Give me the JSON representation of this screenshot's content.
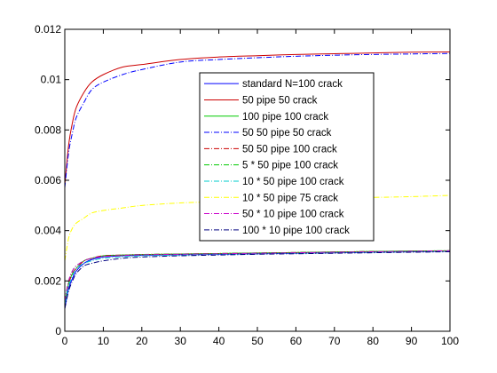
{
  "chart_data": {
    "type": "line",
    "title": "",
    "xlabel": "",
    "ylabel": "",
    "xlim": [
      0,
      100
    ],
    "ylim": [
      0,
      0.012
    ],
    "xticks": [
      0,
      10,
      20,
      30,
      40,
      50,
      60,
      70,
      80,
      90,
      100
    ],
    "xtick_labels": [
      "0",
      "10",
      "20",
      "30",
      "40",
      "50",
      "60",
      "70",
      "80",
      "90",
      "100"
    ],
    "yticks": [
      0,
      0.002,
      0.004,
      0.006,
      0.008,
      0.01,
      0.012
    ],
    "ytick_labels": [
      "0",
      "0.002",
      "0.004",
      "0.006",
      "0.008",
      "0.01",
      "0.012"
    ],
    "grid": false,
    "legend_position": "center",
    "x": [
      0,
      1,
      2,
      3,
      5,
      7,
      10,
      15,
      20,
      30,
      40,
      50,
      60,
      70,
      80,
      90,
      100
    ],
    "series": [
      {
        "name": "standard N=100 crack",
        "color": "#0000ff",
        "dash": "solid",
        "values": [
          0.0009,
          0.0017,
          0.0021,
          0.0024,
          0.0027,
          0.00285,
          0.00295,
          0.003,
          0.00302,
          0.00304,
          0.00306,
          0.00308,
          0.0031,
          0.00312,
          0.00314,
          0.00316,
          0.00318
        ]
      },
      {
        "name": "50 pipe 50 crack",
        "color": "#cc0000",
        "dash": "solid",
        "values": [
          0.0058,
          0.0074,
          0.0083,
          0.0089,
          0.0095,
          0.0099,
          0.0102,
          0.0105,
          0.0106,
          0.0108,
          0.0109,
          0.01095,
          0.011,
          0.01103,
          0.01106,
          0.01109,
          0.0111
        ]
      },
      {
        "name": "100 pipe 100 crack",
        "color": "#00cc00",
        "dash": "solid",
        "values": [
          0.0011,
          0.0019,
          0.0023,
          0.0025,
          0.0028,
          0.0029,
          0.003,
          0.00303,
          0.00305,
          0.00307,
          0.00309,
          0.00311,
          0.00313,
          0.00315,
          0.00317,
          0.00319,
          0.0032
        ]
      },
      {
        "name": "50 50 pipe 50 crack",
        "color": "#0000ff",
        "dash": "dashdot",
        "values": [
          0.0057,
          0.0071,
          0.0079,
          0.0085,
          0.0091,
          0.0096,
          0.0099,
          0.0102,
          0.0104,
          0.0107,
          0.0108,
          0.01087,
          0.01093,
          0.01097,
          0.011,
          0.01102,
          0.01104
        ]
      },
      {
        "name": "50 50 pipe 100 crack",
        "color": "#cc0000",
        "dash": "dashdot",
        "values": [
          0.0012,
          0.0019,
          0.0023,
          0.0025,
          0.0028,
          0.0029,
          0.003,
          0.00303,
          0.00305,
          0.00307,
          0.00309,
          0.00311,
          0.00313,
          0.00315,
          0.00317,
          0.00318,
          0.0032
        ]
      },
      {
        "name": "5 * 50 pipe 100 crack",
        "color": "#00cc00",
        "dash": "dashdot",
        "values": [
          0.0012,
          0.002,
          0.0024,
          0.0026,
          0.0028,
          0.0029,
          0.00298,
          0.00302,
          0.00305,
          0.00307,
          0.00309,
          0.00311,
          0.00313,
          0.00315,
          0.00317,
          0.00319,
          0.0032
        ]
      },
      {
        "name": "10 * 50 pipe 100 crack",
        "color": "#00cccc",
        "dash": "dashdot",
        "values": [
          0.0011,
          0.0018,
          0.0022,
          0.0025,
          0.0027,
          0.0028,
          0.0029,
          0.00296,
          0.003,
          0.00303,
          0.00306,
          0.00308,
          0.0031,
          0.00312,
          0.00314,
          0.00316,
          0.00318
        ]
      },
      {
        "name": "10 * 50 pipe 75 crack",
        "color": "#ffff00",
        "dash": "dashdot",
        "values": [
          0.0028,
          0.0037,
          0.0041,
          0.0043,
          0.0045,
          0.0047,
          0.0048,
          0.0049,
          0.005,
          0.0051,
          0.00515,
          0.0052,
          0.00525,
          0.0053,
          0.00532,
          0.00535,
          0.0054
        ]
      },
      {
        "name": "50 * 10 pipe 100 crack",
        "color": "#cc00cc",
        "dash": "dashdot",
        "values": [
          0.0012,
          0.002,
          0.0024,
          0.0026,
          0.0028,
          0.0029,
          0.00297,
          0.00301,
          0.00304,
          0.00306,
          0.00308,
          0.0031,
          0.00312,
          0.00314,
          0.00316,
          0.00318,
          0.0032
        ]
      },
      {
        "name": "100 * 10 pipe 100 crack",
        "color": "#000080",
        "dash": "dashdot",
        "values": [
          0.0009,
          0.0016,
          0.002,
          0.0023,
          0.0026,
          0.0027,
          0.0028,
          0.0029,
          0.00295,
          0.003,
          0.00303,
          0.00306,
          0.00308,
          0.0031,
          0.00312,
          0.00314,
          0.00316
        ]
      }
    ]
  }
}
